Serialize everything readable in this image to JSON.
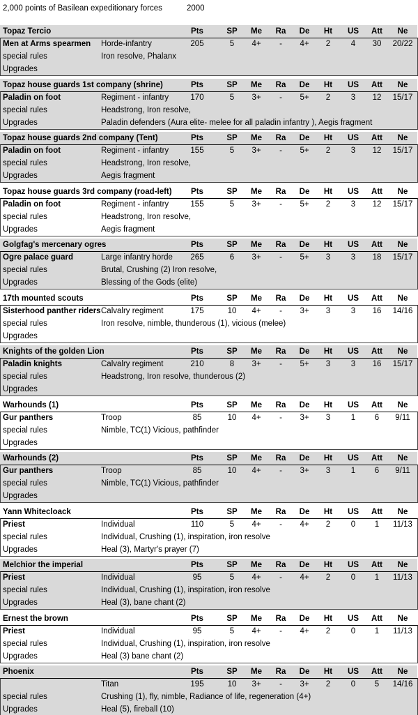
{
  "header": {
    "title": "2,000 points of Basilean expeditionary forces",
    "points": "2000"
  },
  "columns": [
    "Pts",
    "SP",
    "Me",
    "Ra",
    "De",
    "Ht",
    "US",
    "Att",
    "Ne"
  ],
  "row_labels": {
    "special": "special rules",
    "upgrades": "Upgrades"
  },
  "groups": [
    {
      "name": "Topaz Tercio",
      "unit": "Men at Arms spearmen",
      "type": "Horde-infantry",
      "stats": [
        205,
        5,
        "4+",
        "-",
        "4+",
        2,
        4,
        30,
        "20/22"
      ],
      "special": "Iron resolve, Phalanx"
    },
    {
      "name": "Topaz house guards 1st company (shrine)",
      "unit": "Paladin on foot",
      "type": "Regiment - infantry",
      "stats": [
        170,
        5,
        "3+",
        "-",
        "5+",
        2,
        3,
        12,
        "15/17"
      ],
      "special": "Headstrong, Iron resolve,",
      "upgrades": "Paladin defenders (Aura elite- melee for all paladin infantry ), Aegis fragment"
    },
    {
      "name": "Topaz house guards 2nd company (Tent)",
      "unit": "Paladin on foot",
      "type": "Regiment - infantry",
      "stats": [
        155,
        5,
        "3+",
        "-",
        "5+",
        2,
        3,
        12,
        "15/17"
      ],
      "special": "Headstrong, Iron resolve,",
      "upgrades": "Aegis fragment"
    },
    {
      "name": "Topaz house guards 3rd company (road-left)",
      "unit": "Paladin on foot",
      "type": "Regiment - infantry",
      "stats": [
        155,
        5,
        "3+",
        "-",
        "5+",
        2,
        3,
        12,
        "15/17"
      ],
      "special": "Headstrong, Iron resolve,",
      "upgrades": "Aegis fragment"
    },
    {
      "name": "Golgfag's mercenary ogres",
      "unit": "Ogre palace guard",
      "type": "Large infantry horde",
      "stats": [
        265,
        6,
        "3+",
        "-",
        "5+",
        3,
        3,
        18,
        "15/17"
      ],
      "special": "Brutal, Crushing (2) Iron resolve,",
      "upgrades": "Blessing of the Gods (elite)"
    },
    {
      "name": "17th mounted scouts",
      "unit": "Sisterhood panther riders",
      "type": "Calvalry regiment",
      "stats": [
        175,
        10,
        "4+",
        "-",
        "3+",
        3,
        3,
        16,
        "14/16"
      ],
      "special": "Iron resolve, nimble, thunderous (1), vicious (melee)"
    },
    {
      "name": "Knights of the golden Lion",
      "unit": "Paladin knights",
      "type": "Calvalry regiment",
      "stats": [
        210,
        8,
        "3+",
        "-",
        "5+",
        3,
        3,
        16,
        "15/17"
      ],
      "special": "Headstrong, Iron resolve, thunderous (2)"
    },
    {
      "name": "Warhounds (1)",
      "unit": "Gur panthers",
      "type": "Troop",
      "stats": [
        85,
        10,
        "4+",
        "-",
        "3+",
        3,
        1,
        6,
        "9/11"
      ],
      "special": "Nimble, TC(1) Vicious, pathfinder"
    },
    {
      "name": "Warhounds (2)",
      "unit": "Gur panthers",
      "type": "Troop",
      "stats": [
        85,
        10,
        "4+",
        "-",
        "3+",
        3,
        1,
        6,
        "9/11"
      ],
      "special": "Nimble, TC(1) Vicious, pathfinder"
    },
    {
      "name": "Yann Whitecloack",
      "unit": "Priest",
      "type": "Individual",
      "stats": [
        110,
        5,
        "4+",
        "-",
        "4+",
        2,
        0,
        1,
        "11/13"
      ],
      "special": "Individual, Crushing (1), inspiration, iron resolve",
      "upgrades": "Heal (3), Martyr's prayer (7)"
    },
    {
      "name": "Melchior the imperial",
      "unit": "Priest",
      "type": "Individual",
      "stats": [
        95,
        5,
        "4+",
        "-",
        "4+",
        2,
        0,
        1,
        "11/13"
      ],
      "special": "Individual, Crushing (1), inspiration, iron resolve",
      "upgrades": "Heal (3), bane chant (2)"
    },
    {
      "name": "Ernest the brown",
      "unit": "Priest",
      "type": "Individual",
      "stats": [
        95,
        5,
        "4+",
        "-",
        "4+",
        2,
        0,
        1,
        "11/13"
      ],
      "special": "Individual, Crushing (1), inspiration, iron resolve",
      "upgrades": "Heal (3) bane chant (2)"
    },
    {
      "name": "Phoenix",
      "unit": null,
      "type": "Titan",
      "stats": [
        195,
        10,
        "3+",
        "-",
        "3+",
        2,
        0,
        5,
        "14/16"
      ],
      "special": "Crushing (1), fly, nimble, Radiance of life, regeneration (4+)",
      "upgrades": "Heal (5), fireball (10)"
    }
  ]
}
